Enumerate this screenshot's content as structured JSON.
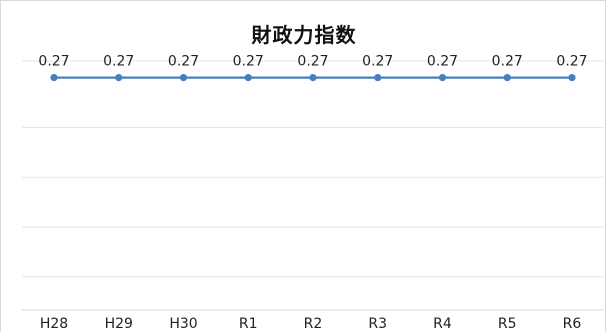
{
  "chart_data": {
    "type": "line",
    "title": "財政力指数",
    "categories": [
      "H28",
      "H29",
      "H30",
      "R1",
      "R2",
      "R3",
      "R4",
      "R5",
      "R6"
    ],
    "series": [
      {
        "values": [
          0.27,
          0.27,
          0.27,
          0.27,
          0.27,
          0.27,
          0.27,
          0.27,
          0.27
        ],
        "data_labels": [
          "0.27",
          "0.27",
          "0.27",
          "0.27",
          "0.27",
          "0.27",
          "0.27",
          "0.27",
          "0.27"
        ],
        "color": "#4a7ebb"
      }
    ],
    "ylim": [
      0.2,
      0.275
    ],
    "gridlines": [
      0.21,
      0.225,
      0.24,
      0.255
    ],
    "grid": true,
    "legend": "none",
    "gridline_color": "#e6e6e6",
    "axis_color": "#d9d9d9"
  }
}
